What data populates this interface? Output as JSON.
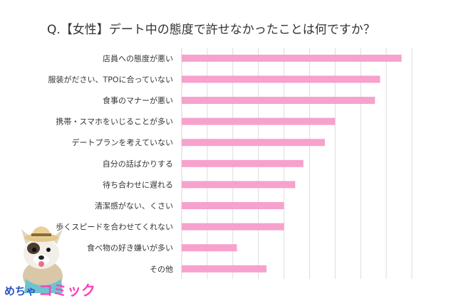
{
  "chart_data": {
    "type": "bar",
    "orientation": "horizontal",
    "title": "Q.【女性】デート中の態度で許せなかったことは何ですか？",
    "categories": [
      "店員への態度が悪い",
      "服装がださい、TPOに合っていない",
      "食事のマナーが悪い",
      "携帯・スマホをいじることが多い",
      "デートプランを考えていない",
      "自分の話ばかりする",
      "待ち合わせに遅れる",
      "清潔感がない、くさい",
      "歩くスピードを合わせてくれない",
      "食べ物の好き嫌いが多い",
      "その他"
    ],
    "values": [
      43.0,
      38.8,
      37.8,
      30.0,
      28.0,
      23.8,
      22.2,
      20.0,
      20.0,
      10.8,
      16.6
    ],
    "xlim": [
      0,
      45
    ],
    "grid": true,
    "bar_color": "#f6a2cc",
    "grid_color": "#dcdcdc"
  },
  "branding": {
    "logo_text_a": "めちゃ",
    "logo_text_b": "コミック",
    "mascot_icon": "french-bulldog-mascot-icon"
  }
}
